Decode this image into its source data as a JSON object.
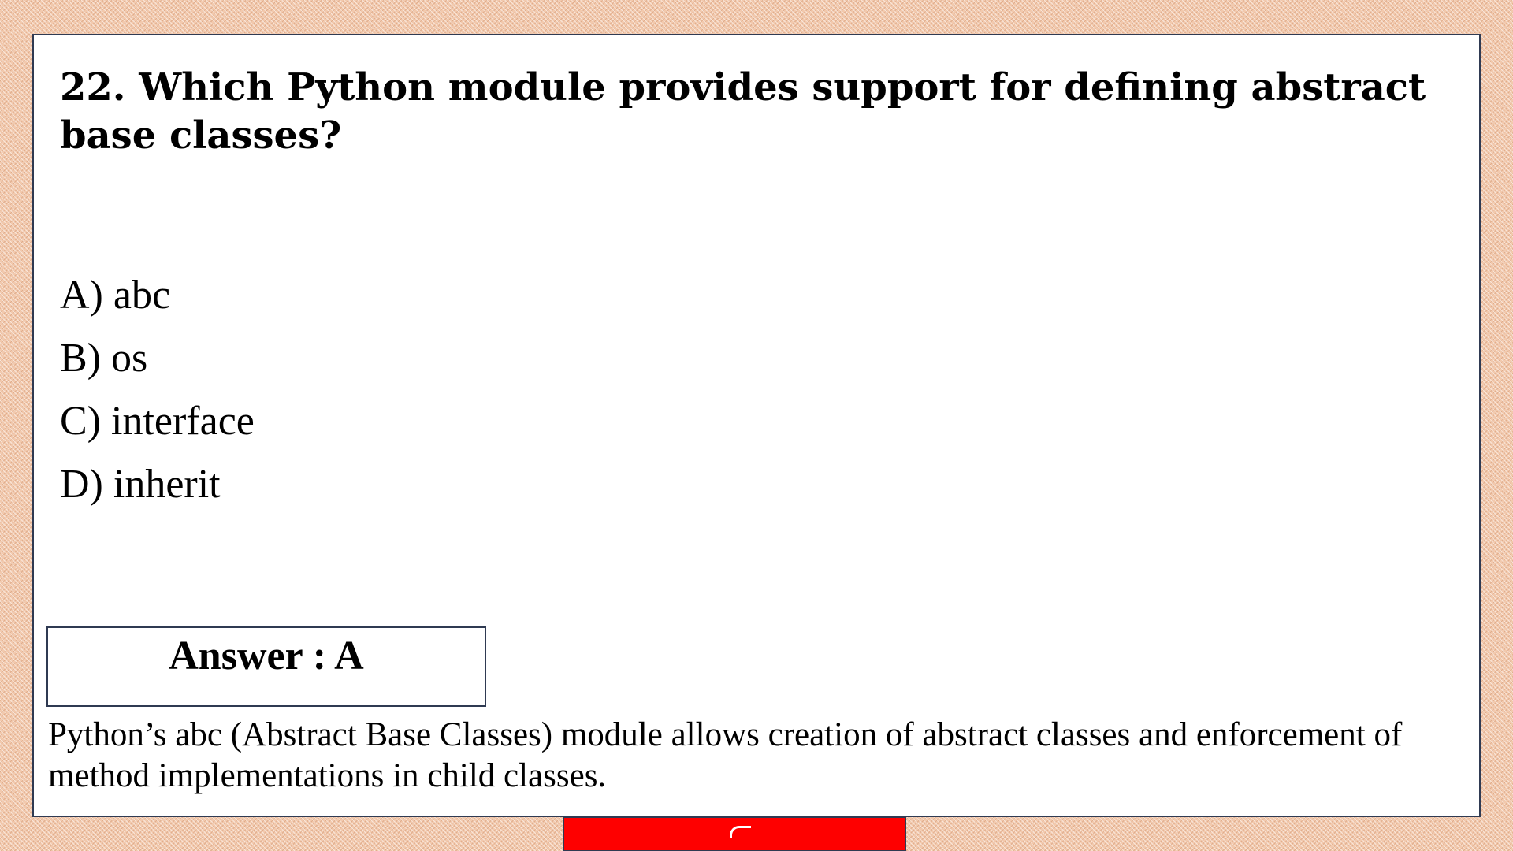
{
  "question": {
    "text": "22. Which Python module provides support for defining abstract base classes?"
  },
  "options": [
    {
      "label": "A) abc"
    },
    {
      "label": "B) os"
    },
    {
      "label": "C) interface"
    },
    {
      "label": "D) inherit"
    }
  ],
  "answer": {
    "text": "Answer : A"
  },
  "explanation": {
    "text": "Python’s abc (Abstract Base Classes) module allows creation of abstract classes and enforcement of method implementations in child classes."
  },
  "colors": {
    "background": "#f2c9ad",
    "slide": "#ffffff",
    "border": "#2f3a52",
    "banner": "#fe0000"
  }
}
